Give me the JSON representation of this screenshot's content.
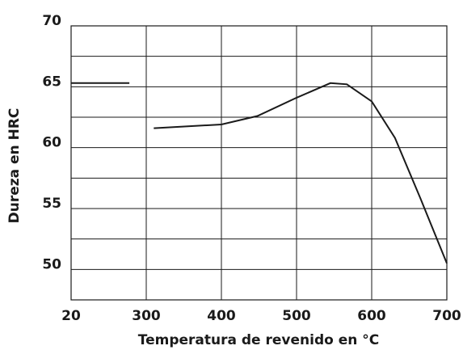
{
  "chart_data": {
    "type": "line",
    "xlabel": "Temperatura de revenido en °C",
    "ylabel": "Dureza en HRC",
    "series": [
      {
        "color": "#1a1a1a",
        "x": [
          20,
          237
        ],
        "values": [
          65.3,
          65.3
        ]
      },
      {
        "color": "#1a1a1a",
        "x": [
          310,
          400,
          448,
          500,
          545,
          567,
          600,
          631,
          665,
          700
        ],
        "values": [
          61.6,
          61.9,
          62.6,
          64.1,
          65.3,
          65.2,
          63.8,
          60.8,
          55.8,
          50.5
        ]
      }
    ],
    "xlim": [
      20,
      700
    ],
    "xticks": [
      20,
      300,
      400,
      500,
      600,
      700
    ],
    "ylim": [
      47.5,
      70
    ],
    "yticks": [
      50,
      55,
      60,
      65,
      70
    ],
    "ygrid": [
      52.5,
      57.5,
      62.5,
      67.5
    ],
    "grid": true
  }
}
